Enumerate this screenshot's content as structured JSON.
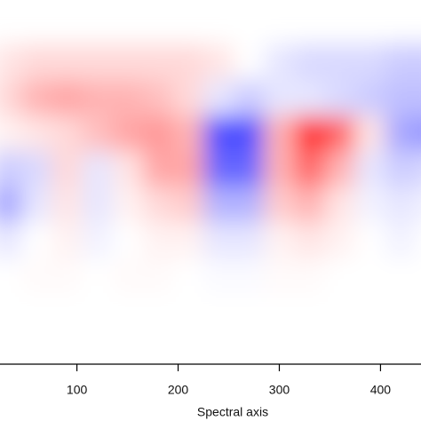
{
  "chart_data": {
    "type": "heatmap",
    "x_label": "Spectral axis",
    "xlim": [
      24,
      440
    ],
    "xticks": [
      100,
      200,
      300,
      400
    ],
    "x": [
      30,
      60,
      90,
      120,
      150,
      180,
      210,
      240,
      270,
      300,
      330,
      360,
      390,
      420,
      450
    ],
    "zlim": [
      -1,
      1
    ],
    "low_color": "#0000ff",
    "mid_color": "#ffffff",
    "high_color": "#ff0000",
    "z": [
      [
        0.1,
        0.15,
        0.15,
        0.15,
        0.15,
        0.15,
        0.15,
        0.1,
        0,
        -0.1,
        -0.15,
        -0.15,
        -0.15,
        -0.2,
        -0.2
      ],
      [
        0.15,
        0.3,
        0.35,
        0.3,
        0.3,
        0.25,
        0.15,
        -0.1,
        -0.2,
        -0.1,
        -0.1,
        -0.15,
        -0.2,
        -0.25,
        -0.25
      ],
      [
        0.05,
        0.1,
        0.15,
        0.25,
        0.35,
        0.4,
        0.3,
        -0.7,
        -0.7,
        0.3,
        0.85,
        0.6,
        0.1,
        -0.35,
        -0.4
      ],
      [
        -0.2,
        -0.15,
        0.15,
        -0.1,
        0.1,
        0.35,
        0.35,
        -0.6,
        -0.6,
        0.3,
        0.6,
        0.3,
        -0.1,
        -0.2,
        -0.15
      ],
      [
        -0.35,
        -0.1,
        0.1,
        -0.1,
        0.05,
        0.15,
        0.2,
        -0.3,
        -0.3,
        0.2,
        0.3,
        0.1,
        -0.05,
        -0.1,
        -0.05
      ],
      [
        -0.1,
        0,
        0.05,
        -0.05,
        0,
        0.05,
        0.05,
        -0.1,
        -0.1,
        0.05,
        0.1,
        0.05,
        0,
        -0.05,
        0
      ],
      [
        0,
        0.02,
        0.02,
        0,
        0.02,
        0.02,
        0,
        -0.02,
        -0.02,
        0.02,
        0.02,
        0,
        0,
        0,
        0
      ],
      [
        0,
        0,
        0,
        0,
        0,
        0,
        0,
        0,
        0,
        0,
        0,
        0,
        0,
        0,
        0
      ]
    ]
  }
}
